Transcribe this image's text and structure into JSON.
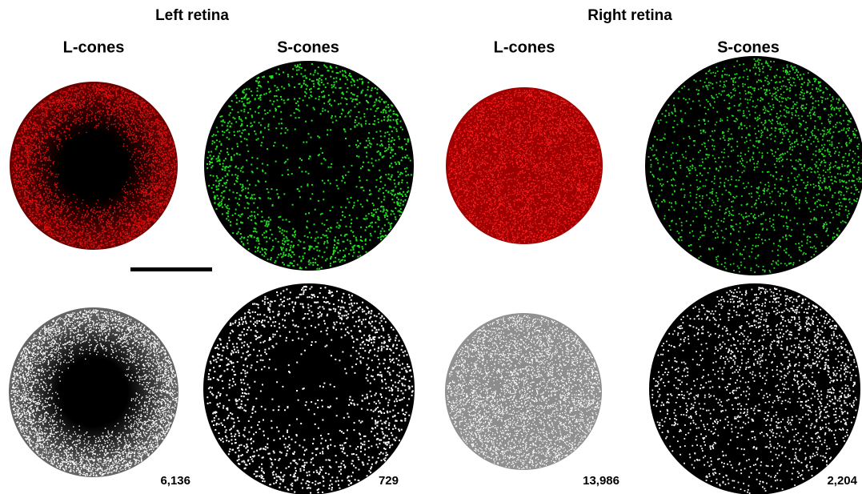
{
  "panels": [
    {
      "title": "Left retina",
      "columns": [
        {
          "label": "L-cones",
          "count": "6,136"
        },
        {
          "label": "S-cones",
          "count": "729"
        }
      ]
    },
    {
      "title": "Right retina",
      "columns": [
        {
          "label": "L-cones",
          "count": "13,986"
        },
        {
          "label": "S-cones",
          "count": "2,204"
        }
      ]
    }
  ]
}
